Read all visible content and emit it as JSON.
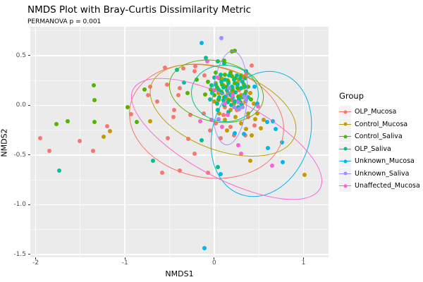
{
  "chart_data": {
    "type": "scatter",
    "title": "NMDS Plot with Bray-Curtis Dissimilarity Metric",
    "subtitle": "PERMANOVA p = 0.001",
    "xlabel": "NMDS1",
    "ylabel": "NMDS2",
    "xlim": [
      -2.06,
      1.28
    ],
    "ylim": [
      -1.53,
      0.79
    ],
    "x_ticks": [
      -2,
      -1,
      0,
      1
    ],
    "x_tick_labels": [
      "-2",
      "-1",
      "0",
      "1"
    ],
    "y_ticks": [
      0.5,
      0.0,
      -0.5,
      -1.0,
      -1.5
    ],
    "y_tick_labels": [
      "0.5",
      "0.0",
      "-0.5",
      "-1.0",
      "-1.5"
    ],
    "x_minor_ticks": [
      -1.5,
      -0.5,
      0.5
    ],
    "y_minor_ticks": [
      0.75,
      0.25,
      -0.25,
      -0.75,
      -1.25
    ],
    "grid": "on",
    "panel_background": "#EBEBEB",
    "grid_color": "#FFFFFF",
    "legend_position": "right",
    "legend_title": "Group",
    "series": [
      {
        "name": "OLP_Mucosa",
        "color": "#F8766D",
        "ellipse": {
          "cx": -0.09,
          "cy": -0.15,
          "rx": 0.87,
          "ry": 0.56,
          "rot_deg": 12
        },
        "points": [
          [
            -1.95,
            -0.33
          ],
          [
            -1.85,
            -0.46
          ],
          [
            -1.51,
            -0.36
          ],
          [
            -1.36,
            -0.46
          ],
          [
            -1.2,
            -0.21
          ],
          [
            -0.93,
            -0.09
          ],
          [
            -0.74,
            0.1
          ],
          [
            -0.72,
            0.19
          ],
          [
            -0.64,
            0.04
          ],
          [
            -0.58,
            -0.68
          ],
          [
            -0.55,
            0.38
          ],
          [
            -0.53,
            0.21
          ],
          [
            -0.52,
            -0.33
          ],
          [
            -0.46,
            -0.12
          ],
          [
            -0.45,
            -0.05
          ],
          [
            -0.4,
            0.1
          ],
          [
            -0.39,
            0.17
          ],
          [
            -0.39,
            -0.66
          ],
          [
            -0.35,
            0.37
          ],
          [
            -0.29,
            -0.34
          ],
          [
            -0.27,
            -0.1
          ],
          [
            -0.22,
            0.34
          ],
          [
            -0.22,
            -0.49
          ],
          [
            -0.21,
            0.39
          ],
          [
            -0.12,
            -0.08
          ],
          [
            -0.11,
            0.3
          ],
          [
            -0.07,
            -0.68
          ],
          [
            -0.05,
            -0.25
          ],
          [
            0.0,
            0.15
          ],
          [
            0.02,
            -0.18
          ],
          [
            0.05,
            0.05
          ],
          [
            0.07,
            -0.33
          ],
          [
            0.1,
            -0.1
          ],
          [
            0.12,
            -0.02
          ],
          [
            0.15,
            0.12
          ],
          [
            0.18,
            -0.22
          ],
          [
            0.2,
            0.05
          ],
          [
            0.22,
            -0.3
          ],
          [
            0.25,
            -0.05
          ],
          [
            0.28,
            0.15
          ],
          [
            0.3,
            0.02
          ],
          [
            0.33,
            0.28
          ],
          [
            0.36,
            0.31
          ],
          [
            0.35,
            -0.3
          ],
          [
            0.38,
            -0.12
          ],
          [
            0.42,
            0.4
          ],
          [
            0.45,
            -0.2
          ]
        ]
      },
      {
        "name": "Control_Mucosa",
        "color": "#C49A00",
        "ellipse": {
          "cx": 0.09,
          "cy": -0.04,
          "rx": 0.85,
          "ry": 0.4,
          "rot_deg": 20
        },
        "points": [
          [
            -1.24,
            -0.32
          ],
          [
            -1.17,
            -0.26
          ],
          [
            -0.72,
            -0.16
          ],
          [
            0.0,
            0.04
          ],
          [
            0.02,
            0.22
          ],
          [
            0.05,
            0.12
          ],
          [
            0.06,
            -0.08
          ],
          [
            0.08,
            0.27
          ],
          [
            0.1,
            0.2
          ],
          [
            0.12,
            -0.15
          ],
          [
            0.14,
            -0.25
          ],
          [
            0.15,
            0.06
          ],
          [
            0.16,
            0.24
          ],
          [
            0.18,
            -0.05
          ],
          [
            0.2,
            0.14
          ],
          [
            0.22,
            0.02
          ],
          [
            0.24,
            -0.12
          ],
          [
            0.25,
            0.22
          ],
          [
            0.28,
            0.26
          ],
          [
            0.3,
            -0.18
          ],
          [
            0.3,
            0.1
          ],
          [
            0.33,
            0.18
          ],
          [
            0.35,
            0.04
          ],
          [
            0.36,
            -0.24
          ],
          [
            0.38,
            -0.08
          ],
          [
            0.4,
            0.12
          ],
          [
            0.4,
            -0.56
          ],
          [
            0.42,
            -0.3
          ],
          [
            0.44,
            0.02
          ],
          [
            0.46,
            -0.14
          ],
          [
            0.48,
            -0.08
          ],
          [
            0.52,
            -0.23
          ],
          [
            0.55,
            -0.15
          ],
          [
            1.01,
            -0.7
          ]
        ]
      },
      {
        "name": "Control_Saliva",
        "color": "#53B400",
        "ellipse": {
          "cx": 0.02,
          "cy": 0.15,
          "rx": 0.53,
          "ry": 0.3,
          "rot_deg": 12
        },
        "points": [
          [
            -1.77,
            -0.19
          ],
          [
            -1.64,
            -0.16
          ],
          [
            -1.35,
            0.2
          ],
          [
            -1.34,
            0.05
          ],
          [
            -1.34,
            -0.17
          ],
          [
            -0.97,
            -0.02
          ],
          [
            -0.87,
            -0.17
          ],
          [
            -0.78,
            0.16
          ],
          [
            -0.3,
            0.12
          ],
          [
            -0.2,
            0.26
          ],
          [
            -0.1,
            0.11
          ],
          [
            -0.07,
            0.24
          ],
          [
            -0.04,
            0.16
          ],
          [
            0.0,
            0.1
          ],
          [
            0.02,
            0.33
          ],
          [
            0.03,
            0.18
          ],
          [
            0.05,
            0.06
          ],
          [
            0.06,
            0.27
          ],
          [
            0.08,
            0.14
          ],
          [
            0.09,
            0.21
          ],
          [
            0.11,
            0.08
          ],
          [
            0.11,
            0.45
          ],
          [
            0.12,
            0.31
          ],
          [
            0.14,
            0.19
          ],
          [
            0.15,
            0.25
          ],
          [
            0.17,
            0.05
          ],
          [
            0.18,
            0.33
          ],
          [
            0.2,
            0.29
          ],
          [
            0.2,
            0.54
          ],
          [
            0.21,
            0.16
          ],
          [
            0.23,
            0.22
          ],
          [
            0.23,
            0.55
          ],
          [
            0.24,
            0.27
          ],
          [
            0.26,
            0.17
          ],
          [
            0.27,
            0.09
          ],
          [
            0.29,
            0.03
          ],
          [
            0.3,
            0.3
          ],
          [
            0.32,
            0.08
          ],
          [
            0.33,
            0.21
          ],
          [
            0.35,
            0.27
          ],
          [
            0.36,
            0.14
          ],
          [
            0.38,
            0.19
          ],
          [
            0.41,
            0.06
          ]
        ]
      },
      {
        "name": "OLP_Saliva",
        "color": "#00C094",
        "ellipse": {
          "cx": 0.11,
          "cy": 0.13,
          "rx": 0.37,
          "ry": 0.28,
          "rot_deg": 5
        },
        "points": [
          [
            -1.74,
            -0.66
          ],
          [
            -0.69,
            -0.56
          ],
          [
            -0.42,
            0.36
          ],
          [
            -0.34,
            0.23
          ],
          [
            -0.14,
            -0.35
          ],
          [
            -0.09,
            0.48
          ],
          [
            -0.05,
            0.06
          ],
          [
            -0.03,
            0.2
          ],
          [
            -0.02,
            0.12
          ],
          [
            0.0,
            0.28
          ],
          [
            0.02,
            0.21
          ],
          [
            0.03,
            0.02
          ],
          [
            0.04,
            -0.05
          ],
          [
            0.04,
            0.44
          ],
          [
            0.04,
            -0.62
          ],
          [
            0.05,
            0.16
          ],
          [
            0.06,
            0.08
          ],
          [
            0.07,
            0.31
          ],
          [
            0.08,
            0.24
          ],
          [
            0.09,
            0.12
          ],
          [
            0.1,
            0.05
          ],
          [
            0.1,
            0.18
          ],
          [
            0.11,
            0.0
          ],
          [
            0.11,
            0.42
          ],
          [
            0.12,
            0.26
          ],
          [
            0.13,
            0.09
          ],
          [
            0.14,
            0.15
          ],
          [
            0.15,
            0.03
          ],
          [
            0.16,
            -0.07
          ],
          [
            0.16,
            0.22
          ],
          [
            0.17,
            0.3
          ],
          [
            0.18,
            0.1
          ],
          [
            0.19,
            0.0
          ],
          [
            0.2,
            0.19
          ],
          [
            0.21,
            0.08
          ],
          [
            0.22,
            0.26
          ],
          [
            0.23,
            0.04
          ],
          [
            0.24,
            0.13
          ],
          [
            0.25,
            0.3
          ],
          [
            0.26,
            0.21
          ],
          [
            0.27,
            -0.02
          ],
          [
            0.28,
            0.06
          ],
          [
            0.29,
            0.27
          ],
          [
            0.3,
            0.17
          ],
          [
            0.31,
            0.01
          ],
          [
            0.32,
            0.24
          ],
          [
            0.34,
            0.11
          ],
          [
            0.35,
            0.19
          ],
          [
            0.36,
            0.34
          ],
          [
            0.38,
            0.08
          ]
        ]
      },
      {
        "name": "Unknown_Mucosa",
        "color": "#00B6EB",
        "ellipse": {
          "cx": 0.52,
          "cy": -0.28,
          "rx": 0.54,
          "ry": 0.64,
          "rot_deg": 18
        },
        "points": [
          [
            -0.14,
            0.63
          ],
          [
            0.45,
            0.19
          ],
          [
            0.48,
            0.02
          ],
          [
            0.59,
            -0.17
          ],
          [
            0.66,
            -0.16
          ],
          [
            0.69,
            -0.24
          ],
          [
            0.6,
            -0.43
          ],
          [
            0.76,
            -0.37
          ],
          [
            0.77,
            -0.57
          ],
          [
            0.23,
            -0.28
          ],
          [
            0.33,
            -0.29
          ],
          [
            0.07,
            -0.69
          ],
          [
            -0.11,
            -1.44
          ]
        ]
      },
      {
        "name": "Unknown_Saliva",
        "color": "#A58AFF",
        "ellipse": {
          "cx": 0.165,
          "cy": 0.08,
          "rx": 0.19,
          "ry": 0.47,
          "rot_deg": 4
        },
        "points": [
          [
            0.08,
            0.68
          ],
          [
            0.05,
            -0.14
          ],
          [
            0.17,
            0.17
          ],
          [
            0.22,
            -0.02
          ],
          [
            0.27,
            0.03
          ],
          [
            0.28,
            -0.04
          ],
          [
            0.32,
            -0.02
          ],
          [
            0.33,
            0.09
          ],
          [
            0.36,
            0.05
          ]
        ]
      },
      {
        "name": "Unaffected_Mucosa",
        "color": "#FB61D7",
        "ellipse": {
          "cx": 0.13,
          "cy": -0.33,
          "rx": 1.18,
          "ry": 0.39,
          "rot_deg": 28
        },
        "points": [
          [
            -0.16,
            -0.16
          ],
          [
            -0.08,
            0.44
          ],
          [
            -0.03,
            -0.15
          ],
          [
            0.04,
            0.28
          ],
          [
            0.09,
            -0.22
          ],
          [
            0.12,
            0.02
          ],
          [
            0.15,
            -0.1
          ],
          [
            0.21,
            0.1
          ],
          [
            0.27,
            -0.4
          ],
          [
            0.3,
            -0.49
          ],
          [
            0.49,
            -0.01
          ],
          [
            0.65,
            -0.61
          ]
        ]
      }
    ]
  }
}
